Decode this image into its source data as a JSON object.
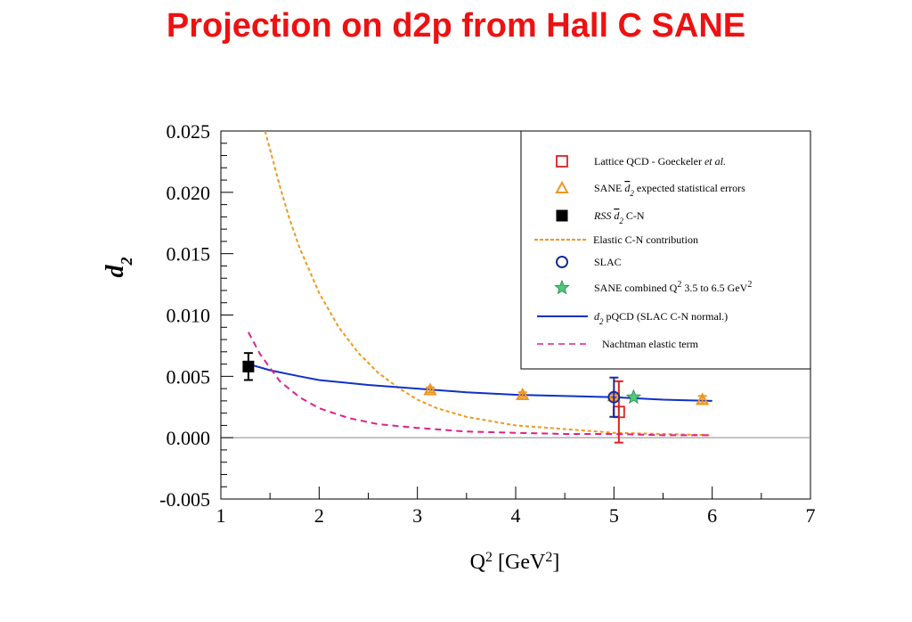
{
  "slide": {
    "title": "Projection on d2p from Hall C SANE"
  },
  "chart_data": {
    "type": "scatter",
    "xlabel_main": "Q",
    "xlabel_sup1": "2",
    "xlabel_unit": " [GeV",
    "xlabel_sup2": "2",
    "xlabel_close": "]",
    "ylabel_main": "d",
    "ylabel_sub": "2",
    "xlim": [
      1,
      7
    ],
    "ylim": [
      -0.005,
      0.025
    ],
    "x_ticks": [
      1,
      2,
      3,
      4,
      5,
      6,
      7
    ],
    "x_tick_labels": [
      "1",
      "2",
      "3",
      "4",
      "5",
      "6",
      "7"
    ],
    "y_ticks": [
      -0.005,
      0.0,
      0.005,
      0.01,
      0.015,
      0.02,
      0.025
    ],
    "y_tick_labels": [
      "-0.005",
      "0.000",
      "0.005",
      "0.010",
      "0.015",
      "0.020",
      "0.025"
    ],
    "legend_position": "top-right",
    "legend": [
      {
        "key": "lattice",
        "text": "Lattice QCD - Goeckeler ",
        "text_italic": "et al."
      },
      {
        "key": "sane",
        "text": "SANE ",
        "math": "d2",
        "text_after": " expected statistical errors"
      },
      {
        "key": "rss",
        "text_italic": "RSS ",
        "math": "d2",
        "text_after": "  C-N"
      },
      {
        "key": "elastic",
        "text": "Elastic C-N contribution"
      },
      {
        "key": "slac",
        "text": "SLAC"
      },
      {
        "key": "sane_combined",
        "text": "SANE combined Q",
        "sup1": "2",
        "text_after": " 3.5 to 6.5 GeV",
        "sup2": "2"
      },
      {
        "key": "pqcd",
        "math_italic": "d2",
        "text_after": " pQCD (SLAC C-N normal.)"
      },
      {
        "key": "nachtman",
        "text": "Nachtman elastic term"
      }
    ],
    "series": [
      {
        "name": "Lattice QCD - Goeckeler et al.",
        "key": "lattice",
        "color": "#e02020",
        "points": [
          {
            "x": 5.05,
            "y": 0.0021,
            "err": 0.0025
          }
        ]
      },
      {
        "name": "SANE d2 expected statistical errors",
        "key": "sane",
        "color": "#f0961e",
        "points": [
          {
            "x": 3.13,
            "y": 0.0039,
            "err": 0.0002
          },
          {
            "x": 4.07,
            "y": 0.0035,
            "err": 0.0002
          },
          {
            "x": 5.0,
            "y": 0.0034,
            "err": 0.0002
          },
          {
            "x": 5.9,
            "y": 0.0031,
            "err": 0.0003
          }
        ]
      },
      {
        "name": "RSS d2 C-N",
        "key": "rss",
        "color": "#000000",
        "points": [
          {
            "x": 1.28,
            "y": 0.0058,
            "err": 0.0011
          }
        ]
      },
      {
        "name": "SLAC",
        "key": "slac",
        "color": "#1a2a9a",
        "points": [
          {
            "x": 5.0,
            "y": 0.0033,
            "err": 0.0016
          }
        ]
      },
      {
        "name": "SANE combined Q2 3.5 to 6.5 GeV2",
        "key": "sane_combined",
        "color": "#50c878",
        "points": [
          {
            "x": 5.2,
            "y": 0.0033,
            "err": 0.0
          }
        ]
      },
      {
        "name": "Elastic C-N contribution",
        "key": "elastic",
        "color": "#f0961e",
        "style": "dotted",
        "curve": [
          [
            1.45,
            0.025
          ],
          [
            1.5,
            0.0235
          ],
          [
            1.6,
            0.0205
          ],
          [
            1.7,
            0.0178
          ],
          [
            1.8,
            0.0155
          ],
          [
            2.0,
            0.0118
          ],
          [
            2.2,
            0.009
          ],
          [
            2.4,
            0.0069
          ],
          [
            2.6,
            0.0053
          ],
          [
            2.8,
            0.0041
          ],
          [
            3.0,
            0.0031
          ],
          [
            3.2,
            0.0024
          ],
          [
            3.5,
            0.0017
          ],
          [
            4.0,
            0.001
          ],
          [
            4.5,
            0.0007
          ],
          [
            5.0,
            0.0004
          ],
          [
            5.5,
            0.0003
          ],
          [
            6.0,
            0.0002
          ]
        ]
      },
      {
        "name": "d2 pQCD (SLAC C-N normal.)",
        "key": "pqcd",
        "color": "#1030c8",
        "style": "solid",
        "curve": [
          [
            1.28,
            0.006
          ],
          [
            1.5,
            0.0055
          ],
          [
            1.8,
            0.005
          ],
          [
            2.0,
            0.0047
          ],
          [
            2.5,
            0.0043
          ],
          [
            3.0,
            0.004
          ],
          [
            3.5,
            0.0037
          ],
          [
            4.0,
            0.0035
          ],
          [
            4.5,
            0.0034
          ],
          [
            5.0,
            0.0033
          ],
          [
            5.5,
            0.0031
          ],
          [
            6.0,
            0.003
          ]
        ]
      },
      {
        "name": "Nachtman elastic term",
        "key": "nachtman",
        "color": "#e0208a",
        "style": "dashed",
        "curve": [
          [
            1.28,
            0.0086
          ],
          [
            1.4,
            0.0068
          ],
          [
            1.6,
            0.0046
          ],
          [
            1.8,
            0.0033
          ],
          [
            2.0,
            0.0024
          ],
          [
            2.3,
            0.0016
          ],
          [
            2.6,
            0.0011
          ],
          [
            3.0,
            0.0008
          ],
          [
            3.5,
            0.0005
          ],
          [
            4.0,
            0.0004
          ],
          [
            4.5,
            0.0003
          ],
          [
            5.0,
            0.0003
          ],
          [
            5.5,
            0.0002
          ],
          [
            6.0,
            0.0002
          ]
        ]
      }
    ]
  }
}
